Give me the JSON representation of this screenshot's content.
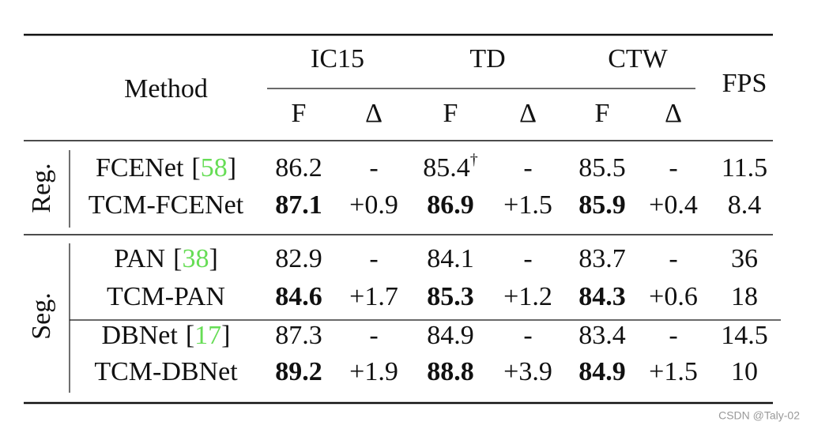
{
  "table": {
    "header": {
      "method": "Method",
      "groups": [
        "IC15",
        "TD",
        "CTW"
      ],
      "sub": [
        "F",
        "Δ"
      ],
      "fps": "FPS"
    },
    "ref_brackets": [
      "[",
      "]"
    ],
    "delta_color": "#3a9a3a",
    "ref_color": "#66dd55",
    "sections": [
      {
        "label": "Reg.",
        "rows": [
          {
            "method": "FCENet",
            "ref": "58",
            "cells": [
              "86.2",
              "-",
              "85.4",
              "-",
              "85.5",
              "-",
              "11.5"
            ],
            "dagger": "†",
            "highlight": false
          },
          {
            "method": "TCM-FCENet",
            "cells": [
              "87.1",
              "+0.9",
              "86.9",
              "+1.5",
              "85.9",
              "+0.4",
              "8.4"
            ],
            "highlight": true
          }
        ]
      },
      {
        "label": "Seg.",
        "rows": [
          {
            "method": "PAN",
            "ref": "38",
            "cells": [
              "82.9",
              "-",
              "84.1",
              "-",
              "83.7",
              "-",
              "36"
            ],
            "highlight": false
          },
          {
            "method": "TCM-PAN",
            "cells": [
              "84.6",
              "+1.7",
              "85.3",
              "+1.2",
              "84.3",
              "+0.6",
              "18"
            ],
            "highlight": true
          },
          {
            "method": "DBNet",
            "ref": "17",
            "cells": [
              "87.3",
              "-",
              "84.9",
              "-",
              "83.4",
              "-",
              "14.5"
            ],
            "highlight": false
          },
          {
            "method": "TCM-DBNet",
            "cells": [
              "89.2",
              "+1.9",
              "88.8",
              "+3.9",
              "84.9",
              "+1.5",
              "10"
            ],
            "highlight": true
          }
        ]
      }
    ]
  },
  "watermark": "CSDN @Taly-02"
}
